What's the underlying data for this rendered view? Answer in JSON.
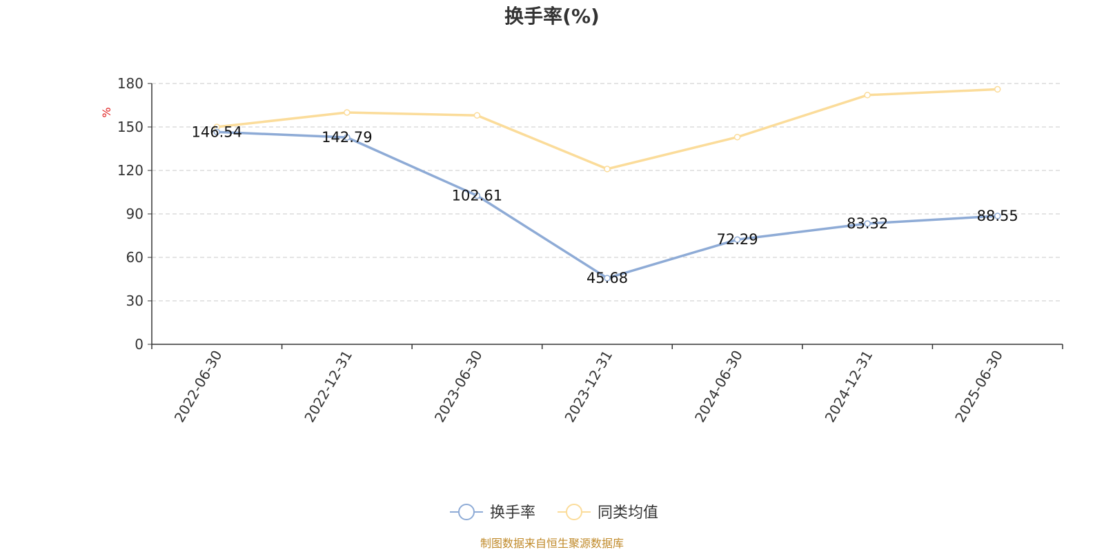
{
  "colors": {
    "series1": "#8eabd6",
    "series2": "#fbdc9a",
    "unit": "#e02020",
    "source": "#c08a2a",
    "grid": "#c8c8c8",
    "axis": "#333333"
  },
  "chart_data": {
    "type": "line",
    "title": "换手率(%)",
    "ylabel": "%",
    "xlabel": "",
    "x": [
      "2022-06-30",
      "2022-12-31",
      "2023-06-30",
      "2023-12-31",
      "2024-06-30",
      "2024-12-31",
      "2025-06-30"
    ],
    "ylim": [
      0,
      180
    ],
    "yticks": [
      0,
      30,
      60,
      90,
      120,
      150,
      180
    ],
    "grid": true,
    "legend_position": "bottom-center",
    "series": [
      {
        "name": "换手率",
        "values": [
          146.54,
          142.79,
          102.61,
          45.68,
          72.29,
          83.32,
          88.55
        ],
        "labels": [
          "146.54",
          "142.79",
          "102.61",
          "45.68",
          "72.29",
          "83.32",
          "88.55"
        ]
      },
      {
        "name": "同类均值",
        "values": [
          150,
          160,
          158,
          121,
          143,
          172,
          176
        ]
      }
    ],
    "source_note": "制图数据来自恒生聚源数据库"
  }
}
